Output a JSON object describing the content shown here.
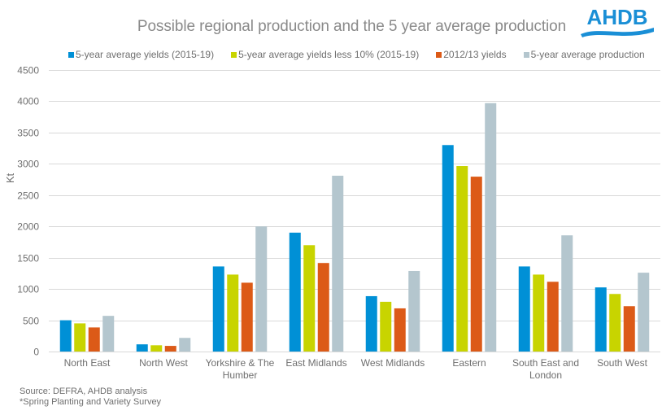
{
  "brand": {
    "logo_text": "AHDB",
    "logo_color": "#1a8fd6"
  },
  "footer": {
    "source": "Source: DEFRA, AHDB analysis",
    "note": "*Spring Planting and Variety Survey"
  },
  "chart_data": {
    "type": "bar",
    "title": "Possible regional production and the 5 year average production",
    "xlabel": "",
    "ylabel": "Kt",
    "ylim": [
      0,
      4500
    ],
    "yticks": [
      0,
      500,
      1000,
      1500,
      2000,
      2500,
      3000,
      3500,
      4000,
      4500
    ],
    "ytick_labels": [
      "0",
      "500",
      "1000",
      "1500",
      "2000",
      "2500",
      "3000",
      "3500",
      "4000",
      "4500"
    ],
    "grid": true,
    "legend_position": "top",
    "categories": [
      [
        "North East"
      ],
      [
        "North West"
      ],
      [
        "Yorkshire & The",
        "Humber"
      ],
      [
        "East Midlands"
      ],
      [
        "West Midlands"
      ],
      [
        "Eastern"
      ],
      [
        "South East and",
        "London"
      ],
      [
        "South West"
      ]
    ],
    "series": [
      {
        "name": "5-year average yields (2015-19)",
        "color": "#0090d6",
        "values": [
          500,
          115,
          1360,
          1900,
          885,
          3300,
          1360,
          1025
        ]
      },
      {
        "name": "5-year average yields less 10% (2015-19)",
        "color": "#c8d400",
        "values": [
          450,
          100,
          1230,
          1700,
          795,
          2965,
          1230,
          920
        ]
      },
      {
        "name": "2012/13 yields",
        "color": "#dc5a17",
        "values": [
          385,
          90,
          1100,
          1415,
          690,
          2795,
          1115,
          725
        ]
      },
      {
        "name": "5-year average production",
        "color": "#b4c6ce",
        "values": [
          570,
          218,
          2000,
          2810,
          1288,
          3970,
          1857,
          1260
        ]
      }
    ]
  }
}
